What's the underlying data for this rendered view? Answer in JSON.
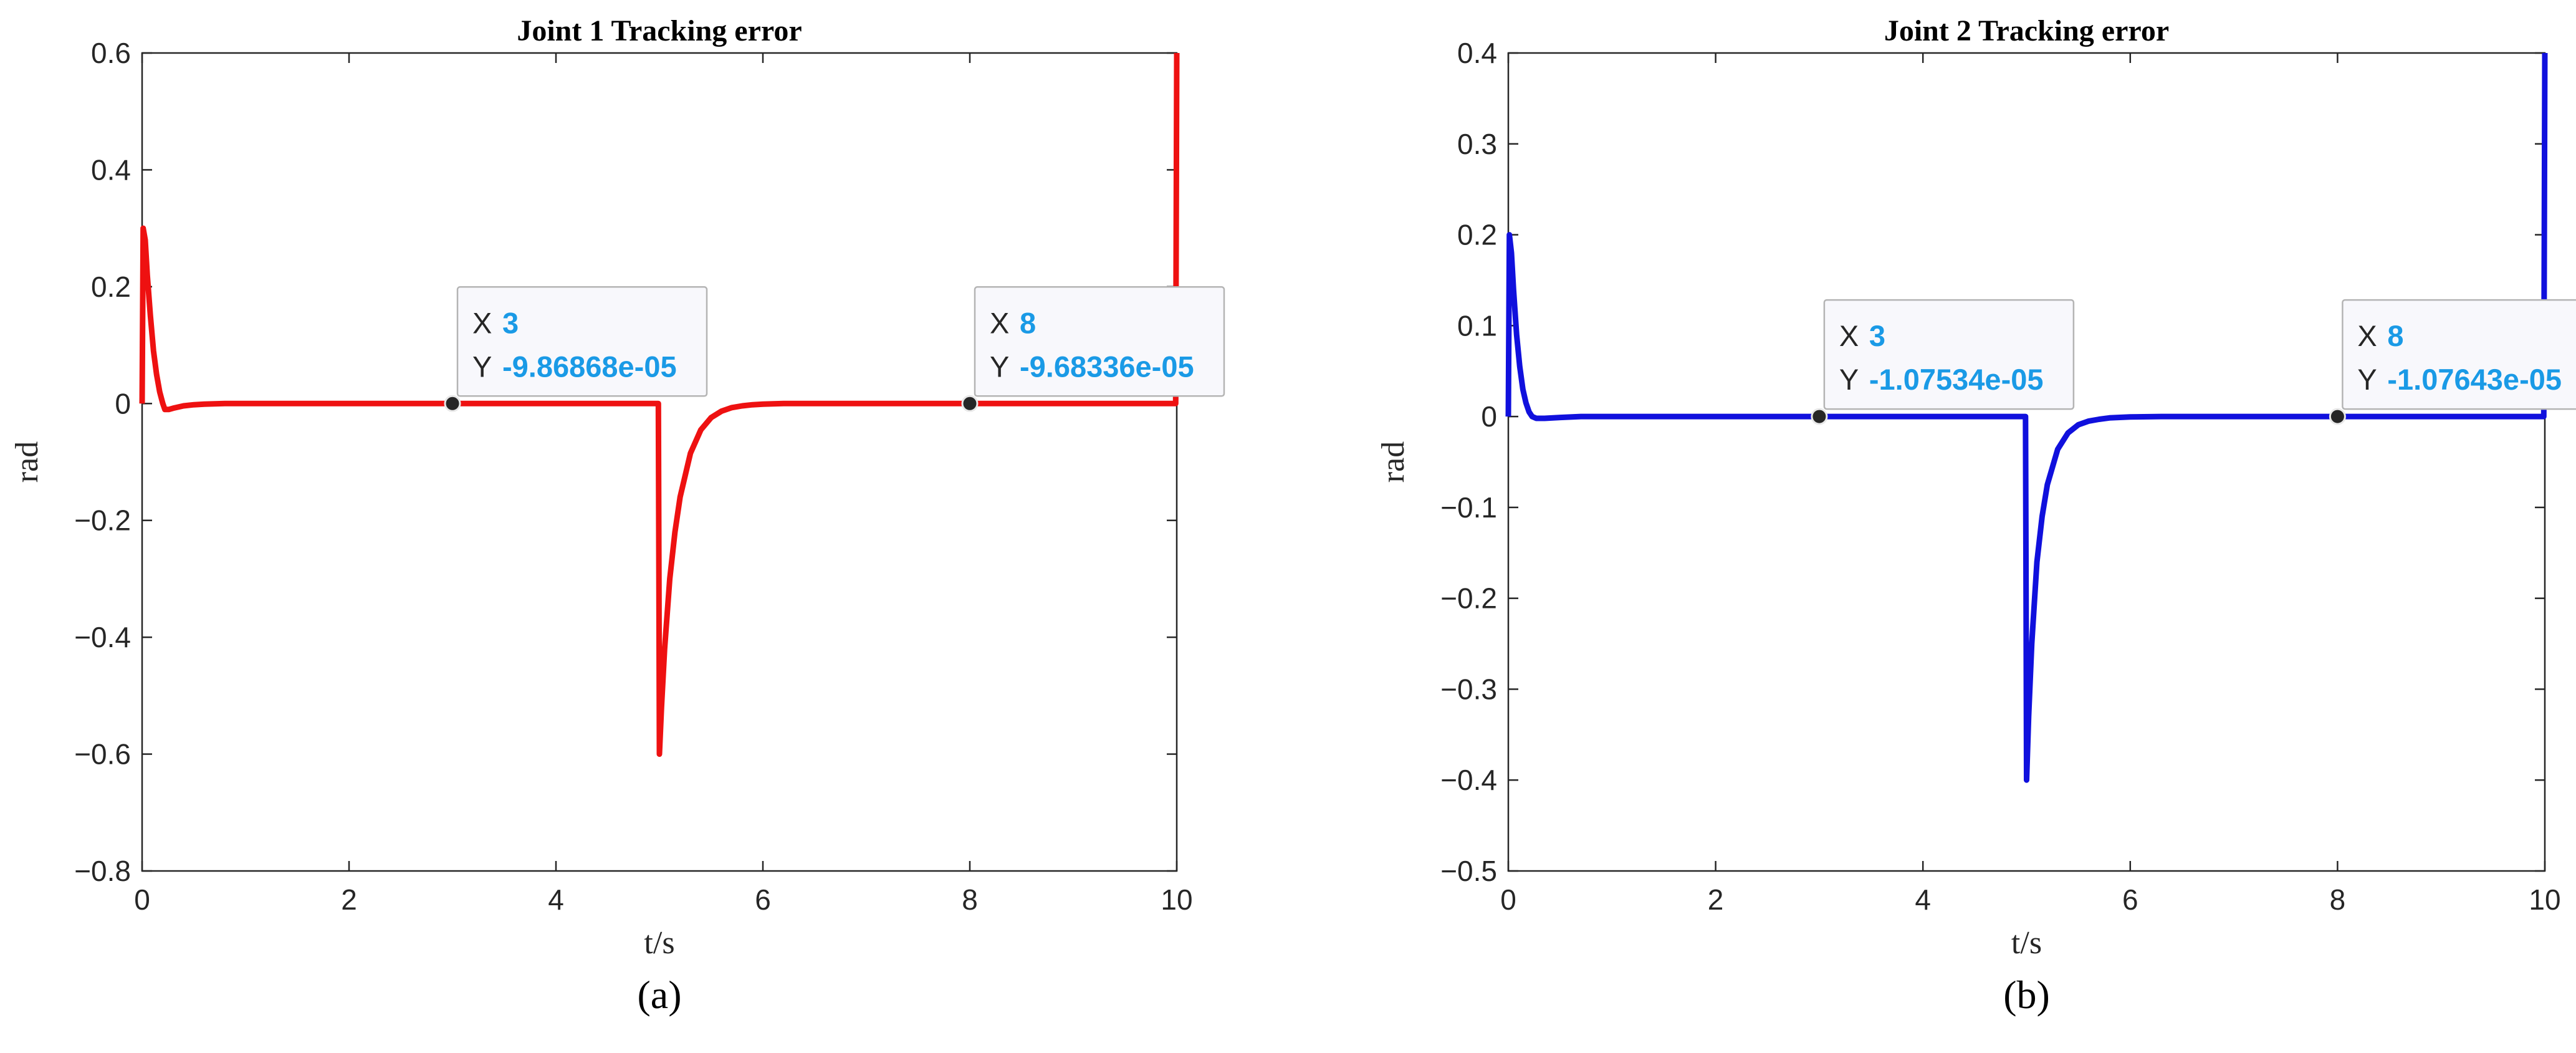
{
  "chart_data": [
    {
      "type": "line",
      "title": "Joint 1 Tracking error",
      "xlabel": "t/s",
      "ylabel": "rad",
      "caption": "(a)",
      "xlim": [
        0,
        10
      ],
      "ylim": [
        -0.8,
        0.6
      ],
      "xticks": [
        0,
        2,
        4,
        6,
        8,
        10
      ],
      "yticks": [
        -0.8,
        -0.6,
        -0.4,
        -0.2,
        0,
        0.2,
        0.4,
        0.6
      ],
      "grid": false,
      "line_color": "#ee1111",
      "series": [
        {
          "x": [
            0,
            0.01,
            0.03,
            0.05,
            0.08,
            0.11,
            0.14,
            0.17,
            0.2,
            0.22,
            0.26,
            0.3,
            0.4,
            0.5,
            0.6,
            0.8,
            1.0,
            2.0,
            3.0,
            4.0,
            4.99,
            4.995,
            5.0,
            5.02,
            5.05,
            5.1,
            5.15,
            5.2,
            5.3,
            5.4,
            5.5,
            5.6,
            5.7,
            5.8,
            5.9,
            6.0,
            6.2,
            6.5,
            7.0,
            8.0,
            9.0,
            9.99,
            10.0
          ],
          "y": [
            0,
            0.3,
            0.28,
            0.22,
            0.15,
            0.09,
            0.05,
            0.02,
            0.0,
            -0.01,
            -0.01,
            -0.008,
            -0.004,
            -0.002,
            -0.001,
            0,
            0,
            0,
            0,
            0,
            0,
            -0.3,
            -0.6,
            -0.52,
            -0.42,
            -0.3,
            -0.22,
            -0.16,
            -0.085,
            -0.045,
            -0.024,
            -0.013,
            -0.007,
            -0.004,
            -0.002,
            -0.001,
            0,
            0,
            0,
            0,
            0,
            0,
            0.6
          ]
        }
      ],
      "datatips": [
        {
          "x_label": "X",
          "x_value": "3",
          "y_label": "Y",
          "y_value": "-9.86868e-05",
          "x": 3,
          "y": 0
        },
        {
          "x_label": "X",
          "x_value": "8",
          "y_label": "Y",
          "y_value": "-9.68336e-05",
          "x": 8,
          "y": 0
        }
      ]
    },
    {
      "type": "line",
      "title": "Joint 2 Tracking error",
      "xlabel": "t/s",
      "ylabel": "rad",
      "caption": "(b)",
      "xlim": [
        0,
        10
      ],
      "ylim": [
        -0.5,
        0.4
      ],
      "xticks": [
        0,
        2,
        4,
        6,
        8,
        10
      ],
      "yticks": [
        -0.5,
        -0.4,
        -0.3,
        -0.2,
        -0.1,
        0,
        0.1,
        0.2,
        0.3,
        0.4
      ],
      "grid": false,
      "line_color": "#1010dd",
      "series": [
        {
          "x": [
            0,
            0.01,
            0.03,
            0.05,
            0.08,
            0.11,
            0.14,
            0.17,
            0.2,
            0.23,
            0.27,
            0.35,
            0.5,
            0.7,
            1.0,
            2.0,
            3.0,
            4.0,
            4.99,
            4.995,
            5.0,
            5.02,
            5.05,
            5.1,
            5.15,
            5.2,
            5.3,
            5.4,
            5.5,
            5.6,
            5.7,
            5.8,
            6.0,
            6.3,
            7.0,
            8.0,
            9.0,
            9.99,
            10.0
          ],
          "y": [
            0,
            0.2,
            0.18,
            0.14,
            0.09,
            0.055,
            0.03,
            0.015,
            0.005,
            0.0,
            -0.002,
            -0.002,
            -0.001,
            0,
            0,
            0,
            0,
            0,
            0,
            -0.2,
            -0.4,
            -0.33,
            -0.25,
            -0.16,
            -0.11,
            -0.075,
            -0.036,
            -0.018,
            -0.009,
            -0.005,
            -0.003,
            -0.0015,
            -0.0005,
            0,
            0,
            0,
            0,
            0,
            0.4
          ]
        }
      ],
      "datatips": [
        {
          "x_label": "X",
          "x_value": "3",
          "y_label": "Y",
          "y_value": "-1.07534e-05",
          "x": 3,
          "y": 0
        },
        {
          "x_label": "X",
          "x_value": "8",
          "y_label": "Y",
          "y_value": "-1.07643e-05",
          "x": 8,
          "y": 0
        }
      ]
    }
  ],
  "style": {
    "datatip_value_color": "#1a9ae6",
    "axis_color": "#262626",
    "datatip_box_fill": "#f8f8fc",
    "datatip_box_stroke": "#b4b4b4"
  }
}
